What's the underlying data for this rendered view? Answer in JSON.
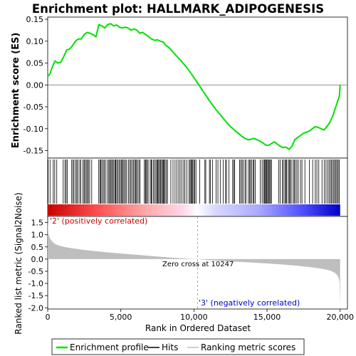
{
  "chart_data": {
    "type": "line",
    "title": "Enrichment plot: HALLMARK_ADIPOGENESIS",
    "x_axis": {
      "label": "Rank in Ordered Dataset",
      "range": [
        0,
        20500
      ],
      "ticks": [
        0,
        5000,
        10000,
        15000,
        20000
      ],
      "tick_labels": [
        "0",
        "5,000",
        "10,000",
        "15,000",
        "20,000"
      ]
    },
    "es_panel": {
      "ylabel": "Enrichment score (ES)",
      "ylim": [
        -0.167,
        0.155
      ],
      "yticks": [
        0.15,
        0.1,
        0.05,
        0.0,
        -0.05,
        -0.1,
        -0.15
      ],
      "ytick_labels": [
        "0.15",
        "0.10",
        "0.05",
        "0.00",
        "-0.05",
        "-0.10",
        "-0.15"
      ],
      "line_color": "#00e000",
      "series": [
        {
          "name": "Enrichment profile",
          "x": [
            0,
            150,
            300,
            500,
            700,
            900,
            1100,
            1300,
            1500,
            1700,
            1900,
            2100,
            2300,
            2500,
            2700,
            2900,
            3100,
            3300,
            3500,
            3700,
            3900,
            4100,
            4300,
            4500,
            4700,
            4900,
            5100,
            5300,
            5500,
            5700,
            5900,
            6100,
            6300,
            6500,
            6700,
            6900,
            7100,
            7300,
            7500,
            7700,
            7900,
            8100,
            8300,
            8500,
            8700,
            8900,
            9100,
            9300,
            9500,
            9700,
            9900,
            10100,
            10300,
            10500,
            10700,
            10900,
            11100,
            11300,
            11500,
            11700,
            11900,
            12100,
            12300,
            12500,
            12700,
            12900,
            13100,
            13300,
            13500,
            13700,
            13900,
            14100,
            14300,
            14500,
            14700,
            14900,
            15100,
            15300,
            15500,
            15700,
            15900,
            16100,
            16300,
            16500,
            16700,
            16900,
            17100,
            17300,
            17500,
            17700,
            17900,
            18100,
            18300,
            18500,
            18700,
            18900,
            19100,
            19300,
            19500,
            19700,
            19850,
            19950,
            20000
          ],
          "y": [
            0.02,
            0.025,
            0.04,
            0.055,
            0.05,
            0.052,
            0.065,
            0.08,
            0.082,
            0.09,
            0.1,
            0.105,
            0.105,
            0.115,
            0.12,
            0.118,
            0.115,
            0.11,
            0.138,
            0.135,
            0.13,
            0.138,
            0.14,
            0.135,
            0.137,
            0.132,
            0.13,
            0.132,
            0.13,
            0.125,
            0.128,
            0.125,
            0.118,
            0.12,
            0.115,
            0.11,
            0.105,
            0.102,
            0.103,
            0.1,
            0.098,
            0.09,
            0.085,
            0.078,
            0.07,
            0.063,
            0.056,
            0.048,
            0.04,
            0.031,
            0.022,
            0.012,
            0.002,
            -0.008,
            -0.018,
            -0.028,
            -0.038,
            -0.047,
            -0.056,
            -0.064,
            -0.072,
            -0.08,
            -0.088,
            -0.095,
            -0.101,
            -0.107,
            -0.112,
            -0.118,
            -0.122,
            -0.125,
            -0.124,
            -0.122,
            -0.125,
            -0.128,
            -0.132,
            -0.137,
            -0.138,
            -0.134,
            -0.13,
            -0.135,
            -0.14,
            -0.143,
            -0.142,
            -0.147,
            -0.14,
            -0.125,
            -0.12,
            -0.115,
            -0.11,
            -0.108,
            -0.105,
            -0.1,
            -0.095,
            -0.097,
            -0.1,
            -0.103,
            -0.095,
            -0.085,
            -0.07,
            -0.05,
            -0.035,
            -0.025,
            0.0
          ]
        }
      ]
    },
    "hits_panel": {
      "legend_entry": "Hits",
      "hit_ranks": [
        30,
        160,
        380,
        480,
        620,
        1060,
        1180,
        1260,
        1340,
        1640,
        1720,
        1800,
        1910,
        1990,
        2070,
        2190,
        2270,
        2410,
        2490,
        2550,
        2640,
        2720,
        2780,
        2870,
        3010,
        3490,
        3570,
        3620,
        3700,
        3790,
        3860,
        3950,
        4080,
        4180,
        4230,
        4310,
        4380,
        4440,
        4520,
        4600,
        4650,
        4720,
        4800,
        4880,
        4960,
        5030,
        5100,
        5160,
        5240,
        5320,
        5400,
        5520,
        5610,
        5690,
        5780,
        5860,
        5940,
        6010,
        6070,
        6150,
        6240,
        6320,
        6610,
        6680,
        6720,
        6800,
        6870,
        7010,
        7080,
        7120,
        7240,
        7310,
        7400,
        7470,
        7530,
        7590,
        7650,
        7720,
        7790,
        7850,
        7910,
        7970,
        8030,
        8120,
        8190,
        8420,
        8570,
        8710,
        8830,
        8960,
        9060,
        9180,
        9300,
        9390,
        9520,
        9660,
        9740,
        9800,
        9860,
        9920,
        9990,
        10060,
        10140,
        10400,
        10750,
        10810,
        11060,
        11120,
        11280,
        11520,
        11640,
        11800,
        12000,
        12160,
        12230,
        12400,
        12650,
        12720,
        12790,
        13120,
        13200,
        13290,
        13360,
        13490,
        13560,
        13720,
        13800,
        13870,
        13940,
        14050,
        14110,
        14190,
        14540,
        14660,
        14760,
        14830,
        14890,
        14940,
        14990,
        15050,
        15110,
        15180,
        15240,
        15300,
        15800,
        15900,
        16050,
        16120,
        16220,
        16280,
        16340,
        16450,
        16520,
        16580,
        16660,
        16790,
        16860,
        16940,
        17040,
        17140,
        17290,
        17390,
        17590,
        17900,
        18120,
        18300,
        18410,
        18540,
        18760,
        18910,
        19030,
        19140,
        19240,
        19330,
        19400,
        19490,
        19570,
        19650,
        19720,
        19800,
        19870,
        19940
      ]
    },
    "heat_strip": {
      "colors": [
        "#cc0000",
        "#ff5555",
        "#ffaaaa",
        "#ffd6ea",
        "#ffffff",
        "#d9d9ff",
        "#aaaaff",
        "#5555ff",
        "#0000cc"
      ]
    },
    "metric_panel": {
      "ylabel": "Ranked list metric (Signal2Noise)",
      "ylim": [
        -2.05,
        1.75
      ],
      "yticks": [
        1.5,
        1.0,
        0.5,
        0.0,
        -0.5,
        -1.0,
        -1.5,
        -2.0
      ],
      "ytick_labels": [
        "1.5",
        "1.0",
        "0.5",
        "0.0",
        "-0.5",
        "-1.0",
        "-1.5",
        "-2.0"
      ],
      "fill_color": "#bebebe",
      "series": [
        {
          "name": "Ranking metric scores",
          "x": [
            0,
            50,
            150,
            300,
            500,
            800,
            1200,
            1700,
            2300,
            3000,
            4000,
            5000,
            6000,
            7000,
            8000,
            9000,
            9800,
            10247,
            11000,
            12000,
            13000,
            14000,
            15000,
            16000,
            17000,
            18000,
            18800,
            19300,
            19600,
            19800,
            19900,
            19960,
            20000
          ],
          "y": [
            1.55,
            1.05,
            0.85,
            0.72,
            0.62,
            0.55,
            0.49,
            0.44,
            0.39,
            0.34,
            0.28,
            0.23,
            0.18,
            0.13,
            0.08,
            0.04,
            0.01,
            0.0,
            -0.04,
            -0.08,
            -0.11,
            -0.14,
            -0.18,
            -0.22,
            -0.27,
            -0.33,
            -0.4,
            -0.47,
            -0.55,
            -0.65,
            -0.78,
            -0.95,
            -1.9
          ]
        }
      ],
      "zero_cross_rank": 10247,
      "annotations": {
        "pos": "'2' (positively correlated)",
        "zero": "Zero cross at 10247",
        "neg": "'3' (negatively correlated)"
      },
      "pos_color": "#cc0000",
      "neg_color": "#0000cc"
    },
    "legend": {
      "entries": [
        "Enrichment profile",
        "Hits",
        "Ranking metric scores"
      ],
      "placement": "bottom-center"
    }
  }
}
